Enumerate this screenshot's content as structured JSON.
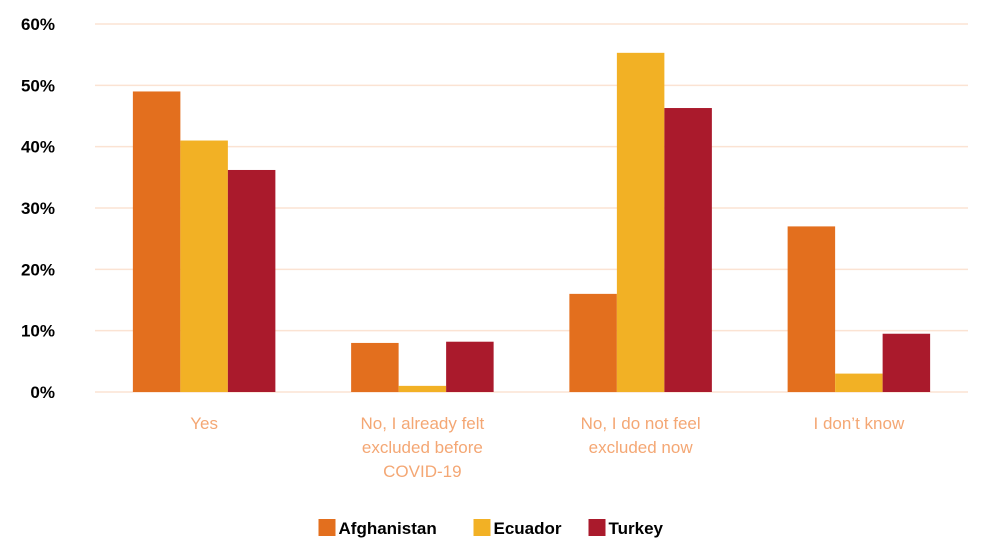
{
  "chart_data": {
    "type": "bar",
    "categories": [
      [
        "Yes"
      ],
      [
        "No, I already felt",
        "excluded before",
        "COVID-19"
      ],
      [
        "No, I do not feel",
        "excluded now"
      ],
      [
        "I don’t know"
      ]
    ],
    "series": [
      {
        "name": "Afghanistan",
        "color": "#E36F1E",
        "values": [
          49,
          8,
          16,
          27
        ]
      },
      {
        "name": "Ecuador",
        "color": "#F2B125",
        "values": [
          41,
          1,
          55.3,
          3
        ]
      },
      {
        "name": "Turkey",
        "color": "#AA1A2C",
        "values": [
          36.2,
          8.2,
          46.3,
          9.5
        ]
      }
    ],
    "y_ticks": [
      "0%",
      "10%",
      "20%",
      "30%",
      "40%",
      "50%",
      "60%"
    ],
    "ylim": [
      0,
      60
    ],
    "grid": true,
    "grid_color": "#FBE3D3",
    "axis_label_color": "#F4A774",
    "legend_position": "bottom"
  }
}
